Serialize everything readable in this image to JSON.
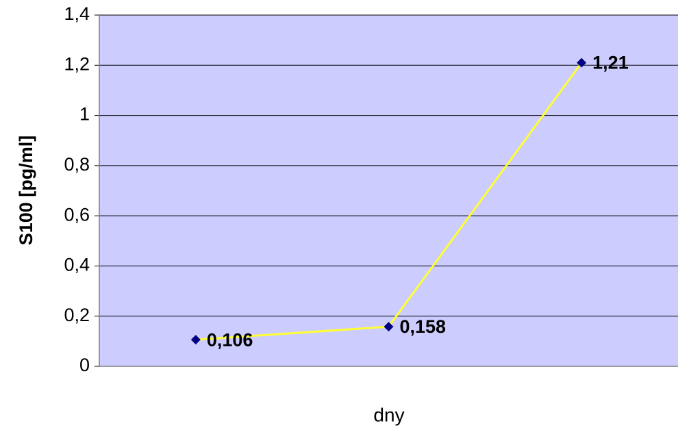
{
  "chart_data": {
    "type": "line",
    "x_label": "dny",
    "y_label": "S100 [pg/ml]",
    "categories": [
      null,
      null,
      null
    ],
    "values": [
      0.106,
      0.158,
      1.21
    ],
    "value_labels": [
      "0,106",
      "0,158",
      "1,21"
    ],
    "color": "#ffff33",
    "marker_color": "#000080",
    "plot_background": "#ccccff",
    "ylim": [
      0,
      1.4
    ],
    "yticks": [
      0,
      {
        "value": 0.2,
        "label": "0,2"
      },
      {
        "value": 0.4,
        "label": "0,4"
      },
      {
        "value": 0.6,
        "label": "0,6"
      },
      {
        "value": 0.8,
        "label": "0,8"
      },
      1,
      {
        "value": 1.2,
        "label": "1,2"
      },
      {
        "value": 1.4,
        "label": "1,4"
      }
    ],
    "grid": true
  }
}
